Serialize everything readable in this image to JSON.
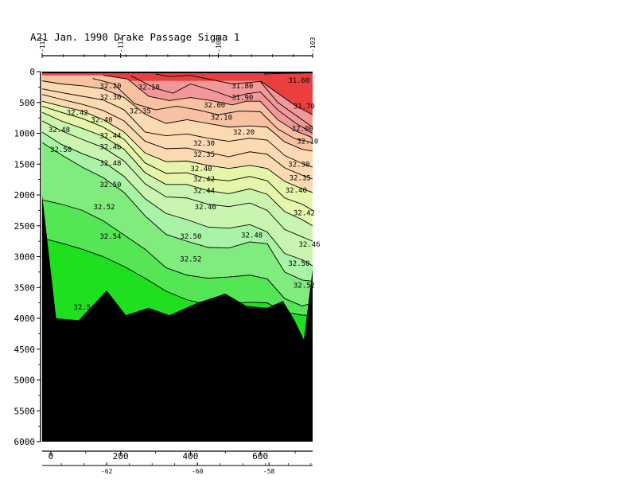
{
  "chart_data": {
    "type": "contour",
    "title": "A21 Jan. 1990 Drake Passage Sigma 1",
    "xlabel": "",
    "ylabel": "",
    "xlim": [
      -25,
      750
    ],
    "ylim": [
      6000,
      0
    ],
    "y_ticks": [
      0,
      500,
      1000,
      1500,
      2000,
      2500,
      3000,
      3500,
      4000,
      4500,
      5000,
      5500,
      6000
    ],
    "x_ticks": [
      0,
      200,
      400,
      600
    ],
    "top_ticks": [
      {
        "label": "-117",
        "x": -25
      },
      {
        "label": "-113",
        "x": 200
      },
      {
        "label": "-108",
        "x": 480
      },
      {
        "label": "-103",
        "x": 750
      }
    ],
    "bottom_ticks": [
      {
        "label": "-62",
        "x": 160
      },
      {
        "label": "-60",
        "x": 420
      },
      {
        "label": "-58",
        "x": 625
      }
    ],
    "bottom_topography": {
      "x": [
        -25,
        15,
        80,
        160,
        215,
        280,
        340,
        420,
        500,
        560,
        620,
        665,
        700,
        725,
        750
      ],
      "depth": [
        2000,
        4000,
        4030,
        3550,
        3950,
        3830,
        3950,
        3750,
        3600,
        3800,
        3830,
        3720,
        4050,
        4350,
        3200
      ]
    },
    "contours": [
      {
        "level": "31.60",
        "x": [
          610,
          660,
          710,
          750
        ],
        "depth": [
          40,
          30,
          25,
          20
        ]
      },
      {
        "level": "31.70",
        "x": [
          600,
          650,
          700,
          750
        ],
        "depth": [
          150,
          350,
          550,
          700
        ]
      },
      {
        "level": "31.80",
        "x": [
          300,
          340,
          400,
          460,
          520,
          560,
          600,
          650,
          700,
          750
        ],
        "depth": [
          40,
          80,
          60,
          130,
          200,
          180,
          160,
          500,
          700,
          900
        ]
      },
      {
        "level": "31.90",
        "x": [
          230,
          300,
          350,
          400,
          460,
          520,
          560,
          600,
          650,
          700,
          750
        ],
        "depth": [
          70,
          270,
          350,
          200,
          300,
          420,
          360,
          330,
          620,
          830,
          1000
        ]
      },
      {
        "level": "32.00",
        "x": [
          150,
          220,
          280,
          340,
          400,
          460,
          520,
          560,
          600,
          650,
          700,
          750
        ],
        "depth": [
          60,
          120,
          400,
          470,
          420,
          470,
          540,
          480,
          480,
          780,
          960,
          1070
        ]
      },
      {
        "level": "32.10",
        "x": [
          120,
          180,
          240,
          300,
          360,
          420,
          480,
          540,
          600,
          650,
          700,
          750
        ],
        "depth": [
          110,
          200,
          520,
          620,
          560,
          620,
          700,
          640,
          650,
          930,
          1090,
          1150
        ]
      },
      {
        "level": "32.20",
        "x": [
          -25,
          30,
          90,
          150,
          210,
          270,
          330,
          390,
          450,
          510,
          570,
          620,
          670,
          720,
          750
        ],
        "depth": [
          150,
          200,
          230,
          280,
          420,
          690,
          840,
          780,
          840,
          900,
          880,
          900,
          1140,
          1260,
          1290
        ]
      },
      {
        "level": "32.30",
        "x": [
          -25,
          30,
          90,
          150,
          210,
          270,
          330,
          390,
          450,
          510,
          570,
          620,
          670,
          720,
          750
        ],
        "depth": [
          280,
          340,
          400,
          460,
          620,
          980,
          1040,
          1010,
          1080,
          1130,
          1080,
          1110,
          1360,
          1490,
          1550
        ]
      },
      {
        "level": "32.35",
        "x": [
          -25,
          30,
          90,
          150,
          210,
          270,
          330,
          390,
          450,
          510,
          570,
          620,
          670,
          720,
          750
        ],
        "depth": [
          370,
          450,
          530,
          630,
          800,
          1130,
          1250,
          1240,
          1310,
          1380,
          1300,
          1340,
          1560,
          1680,
          1740
        ]
      },
      {
        "level": "32.40",
        "x": [
          -25,
          30,
          90,
          150,
          210,
          270,
          330,
          390,
          450,
          510,
          570,
          620,
          670,
          720,
          750
        ],
        "depth": [
          480,
          560,
          640,
          780,
          980,
          1320,
          1460,
          1450,
          1520,
          1570,
          1520,
          1570,
          1780,
          1900,
          1960
        ]
      },
      {
        "level": "32.42",
        "x": [
          -25,
          30,
          90,
          150,
          210,
          270,
          330,
          390,
          450,
          510,
          570,
          620,
          670,
          720,
          750
        ],
        "depth": [
          560,
          660,
          760,
          900,
          1100,
          1480,
          1650,
          1640,
          1740,
          1770,
          1700,
          1770,
          2050,
          2150,
          2250
        ]
      },
      {
        "level": "32.44",
        "x": [
          -25,
          30,
          90,
          150,
          210,
          270,
          330,
          390,
          450,
          510,
          570,
          620,
          670,
          720,
          750
        ],
        "depth": [
          660,
          800,
          920,
          1050,
          1260,
          1640,
          1830,
          1830,
          1930,
          1980,
          1900,
          1990,
          2270,
          2400,
          2500
        ]
      },
      {
        "level": "32.46",
        "x": [
          -25,
          30,
          90,
          150,
          210,
          270,
          330,
          390,
          450,
          510,
          570,
          620,
          670,
          720,
          750
        ],
        "depth": [
          800,
          960,
          1100,
          1230,
          1450,
          1820,
          2030,
          2050,
          2150,
          2190,
          2130,
          2250,
          2560,
          2680,
          2750
        ]
      },
      {
        "level": "32.48",
        "x": [
          -25,
          30,
          90,
          150,
          210,
          270,
          330,
          390,
          450,
          510,
          570,
          620,
          670,
          720,
          750
        ],
        "depth": [
          980,
          1180,
          1330,
          1460,
          1700,
          2060,
          2300,
          2400,
          2520,
          2540,
          2480,
          2600,
          2950,
          3050,
          3150
        ]
      },
      {
        "level": "32.50",
        "x": [
          -25,
          30,
          90,
          150,
          210,
          270,
          330,
          390,
          450,
          510,
          570,
          620,
          670,
          720,
          750
        ],
        "depth": [
          1150,
          1350,
          1550,
          1720,
          1960,
          2340,
          2640,
          2750,
          2850,
          2860,
          2760,
          2790,
          3250,
          3380,
          3400
        ]
      },
      {
        "level": "32.52",
        "x": [
          -25,
          30,
          90,
          150,
          210,
          270,
          330,
          390,
          450,
          510,
          570,
          620,
          670,
          720,
          750
        ],
        "depth": [
          2080,
          2150,
          2250,
          2420,
          2650,
          2880,
          3180,
          3300,
          3350,
          3330,
          3300,
          3360,
          3680,
          3800,
          3750
        ]
      },
      {
        "level": "32.54",
        "x": [
          -25,
          30,
          90,
          150,
          210,
          270,
          330,
          390,
          450,
          510,
          570,
          620,
          670,
          720,
          750
        ],
        "depth": [
          2700,
          2780,
          2880,
          3000,
          3160,
          3350,
          3560,
          3700,
          3780,
          3760,
          3740,
          3750,
          3900,
          3950,
          3950
        ]
      }
    ],
    "contour_labels": [
      {
        "text": "32.20",
        "x": 140,
        "depth": 270
      },
      {
        "text": "32.10",
        "x": 250,
        "depth": 290
      },
      {
        "text": "31.80",
        "x": 518,
        "depth": 270
      },
      {
        "text": "31.60",
        "x": 680,
        "depth": 180
      },
      {
        "text": "32.30",
        "x": 140,
        "depth": 450
      },
      {
        "text": "31.90",
        "x": 518,
        "depth": 460
      },
      {
        "text": "31.70",
        "x": 695,
        "depth": 600
      },
      {
        "text": "32.42",
        "x": 45,
        "depth": 700
      },
      {
        "text": "32.35",
        "x": 225,
        "depth": 680
      },
      {
        "text": "32.00",
        "x": 438,
        "depth": 580
      },
      {
        "text": "32.40",
        "x": 115,
        "depth": 820
      },
      {
        "text": "32.10",
        "x": 458,
        "depth": 780
      },
      {
        "text": "32.48",
        "x": -7,
        "depth": 980
      },
      {
        "text": "32.20",
        "x": 522,
        "depth": 1020
      },
      {
        "text": "32.00",
        "x": 690,
        "depth": 960
      },
      {
        "text": "32.44",
        "x": 140,
        "depth": 1080
      },
      {
        "text": "32.10",
        "x": 705,
        "depth": 1170
      },
      {
        "text": "32.30",
        "x": 408,
        "depth": 1200
      },
      {
        "text": "32.50",
        "x": -2,
        "depth": 1300
      },
      {
        "text": "32.4b",
        "x": 140,
        "depth": 1260
      },
      {
        "text": "32.35",
        "x": 408,
        "depth": 1380
      },
      {
        "text": "32.48",
        "x": 140,
        "depth": 1520
      },
      {
        "text": "32.30",
        "x": 680,
        "depth": 1540
      },
      {
        "text": "32.40",
        "x": 400,
        "depth": 1610
      },
      {
        "text": "32.42",
        "x": 408,
        "depth": 1780
      },
      {
        "text": "32.35",
        "x": 683,
        "depth": 1760
      },
      {
        "text": "32.50",
        "x": 140,
        "depth": 1870
      },
      {
        "text": "32.44",
        "x": 408,
        "depth": 1970
      },
      {
        "text": "32.40",
        "x": 672,
        "depth": 1960
      },
      {
        "text": "32.52",
        "x": 122,
        "depth": 2230
      },
      {
        "text": "32.46",
        "x": 412,
        "depth": 2230
      },
      {
        "text": "32.42",
        "x": 695,
        "depth": 2330
      },
      {
        "text": "32.54",
        "x": 140,
        "depth": 2710
      },
      {
        "text": "32.50",
        "x": 370,
        "depth": 2710
      },
      {
        "text": "32.48",
        "x": 545,
        "depth": 2690
      },
      {
        "text": "32.46",
        "x": 710,
        "depth": 2840
      },
      {
        "text": "32.52",
        "x": 370,
        "depth": 3080
      },
      {
        "text": "32.50",
        "x": 680,
        "depth": 3150
      },
      {
        "text": "32.52",
        "x": 695,
        "depth": 3500
      },
      {
        "text": "32.5",
        "x": 65,
        "depth": 3860
      }
    ],
    "fill_colors": [
      "#ea3f3f",
      "#f29898",
      "#f8c2a2",
      "#fbd9b1",
      "#e5f5aa",
      "#c9f5b0",
      "#a9f3a6",
      "#7fec7d",
      "#55e656",
      "#1ee01e"
    ]
  }
}
